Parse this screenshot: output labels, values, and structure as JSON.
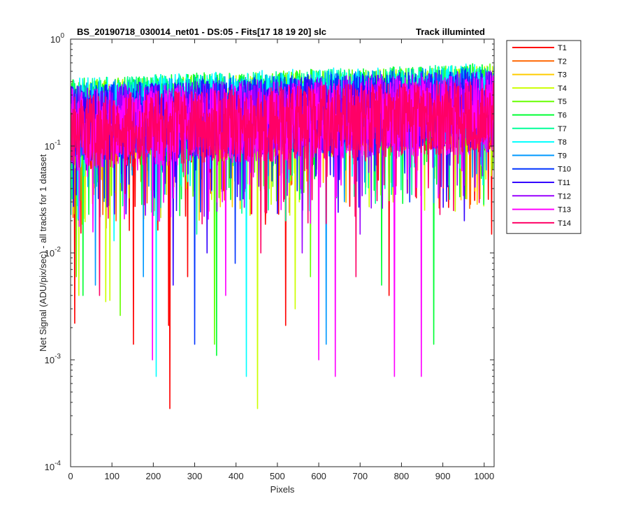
{
  "chart_data": {
    "type": "line",
    "title": "BS_20190718_030014_net01 - DS:05 - Fits[17   18   19   20]   slc",
    "title_right": "Track illuminted",
    "xlabel": "Pixels",
    "ylabel": "Net Signal (ADU/pix/sec) - all tracks for 1 dataset",
    "xlim": [
      0,
      1024
    ],
    "ylim": [
      0.0001,
      1
    ],
    "yscale": "log",
    "x_ticks": [
      0,
      100,
      200,
      300,
      400,
      500,
      600,
      700,
      800,
      900,
      1000
    ],
    "x_tick_labels": [
      "0",
      "100",
      "200",
      "300",
      "400",
      "500",
      "600",
      "700",
      "800",
      "900",
      "1000"
    ],
    "y_ticks": [
      0.0001,
      0.001,
      0.01,
      0.1,
      1
    ],
    "y_tick_labels": [
      {
        "base": "10",
        "exp": "-4"
      },
      {
        "base": "10",
        "exp": "-3"
      },
      {
        "base": "10",
        "exp": "-2"
      },
      {
        "base": "10",
        "exp": "-1"
      },
      {
        "base": "10",
        "exp": "0"
      }
    ],
    "grid": false,
    "legend_position": "outside-right",
    "series": [
      {
        "name": "T1",
        "color": "#ff0000",
        "baseline": 0.15,
        "min": 0.06,
        "max": 0.3,
        "dips": [
          [
            10,
            0.0022
          ],
          [
            152,
            0.0014
          ],
          [
            237,
            0.0021
          ],
          [
            240,
            0.00035
          ],
          [
            283,
            0.006
          ],
          [
            520,
            0.0021
          ],
          [
            770,
            0.004
          ],
          [
            1018,
            0.015
          ]
        ]
      },
      {
        "name": "T2",
        "color": "#ff6600",
        "baseline": 0.16,
        "min": 0.07,
        "max": 0.31,
        "dips": [
          [
            110,
            0.02
          ],
          [
            520,
            0.03
          ]
        ]
      },
      {
        "name": "T3",
        "color": "#ffcc00",
        "baseline": 0.17,
        "min": 0.07,
        "max": 0.33,
        "dips": [
          [
            480,
            0.04
          ]
        ]
      },
      {
        "name": "T4",
        "color": "#ccff00",
        "baseline": 0.18,
        "min": 0.07,
        "max": 0.4,
        "dips": [
          [
            20,
            0.004
          ],
          [
            85,
            0.0035
          ],
          [
            95,
            0.0036
          ],
          [
            452,
            0.00035
          ],
          [
            543,
            0.003
          ]
        ]
      },
      {
        "name": "T5",
        "color": "#66ff00",
        "baseline": 0.19,
        "min": 0.08,
        "max": 0.42,
        "dips": [
          [
            14,
            0.006
          ],
          [
            120,
            0.0026
          ],
          [
            348,
            0.0014
          ],
          [
            580,
            0.006
          ],
          [
            880,
            0.05
          ]
        ]
      },
      {
        "name": "T6",
        "color": "#00ff33",
        "baseline": 0.19,
        "min": 0.08,
        "max": 0.43,
        "dips": [
          [
            30,
            0.004
          ],
          [
            353,
            0.0011
          ],
          [
            752,
            0.005
          ],
          [
            878,
            0.0014
          ]
        ]
      },
      {
        "name": "T7",
        "color": "#00ff99",
        "baseline": 0.19,
        "min": 0.08,
        "max": 0.42,
        "dips": [
          [
            305,
            0.015
          ],
          [
            520,
            0.02
          ],
          [
            760,
            0.04
          ]
        ]
      },
      {
        "name": "T8",
        "color": "#00ffff",
        "baseline": 0.19,
        "min": 0.08,
        "max": 0.43,
        "dips": [
          [
            207,
            0.0007
          ],
          [
            425,
            0.0007
          ],
          [
            105,
            0.013
          ]
        ]
      },
      {
        "name": "T9",
        "color": "#0099ff",
        "baseline": 0.18,
        "min": 0.08,
        "max": 0.4,
        "dips": [
          [
            60,
            0.005
          ],
          [
            176,
            0.006
          ],
          [
            618,
            0.0014
          ]
        ]
      },
      {
        "name": "T10",
        "color": "#0033ff",
        "baseline": 0.17,
        "min": 0.07,
        "max": 0.38,
        "dips": [
          [
            300,
            0.0014
          ],
          [
            398,
            0.008
          ],
          [
            820,
            0.03
          ]
        ]
      },
      {
        "name": "T11",
        "color": "#3300ff",
        "baseline": 0.16,
        "min": 0.07,
        "max": 0.36,
        "dips": [
          [
            248,
            0.005
          ],
          [
            330,
            0.01
          ],
          [
            952,
            0.02
          ]
        ]
      },
      {
        "name": "T12",
        "color": "#9900ff",
        "baseline": 0.16,
        "min": 0.07,
        "max": 0.36,
        "dips": [
          [
            560,
            0.01
          ],
          [
            700,
            0.015
          ]
        ]
      },
      {
        "name": "T13",
        "color": "#ff00ff",
        "baseline": 0.15,
        "min": 0.06,
        "max": 0.34,
        "dips": [
          [
            198,
            0.001
          ],
          [
            600,
            0.001
          ],
          [
            640,
            0.0007
          ],
          [
            783,
            0.0007
          ],
          [
            848,
            0.0007
          ],
          [
            375,
            0.004
          ]
        ]
      },
      {
        "name": "T14",
        "color": "#ff0066",
        "baseline": 0.14,
        "min": 0.06,
        "max": 0.3,
        "dips": [
          [
            70,
            0.004
          ],
          [
            460,
            0.01
          ],
          [
            690,
            0.006
          ]
        ]
      }
    ]
  }
}
